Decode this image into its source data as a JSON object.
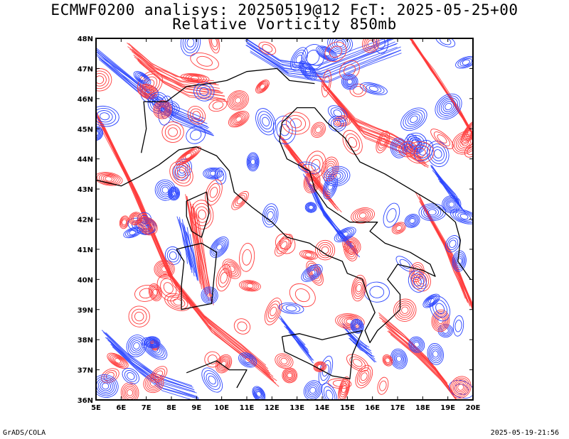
{
  "header": {
    "title_line1": "ECMWF0200 analisys: 20250519@12 FcT: 2025-05-25+00",
    "title_line2": "Relative Vorticity 850mb"
  },
  "map": {
    "lon_range": [
      5,
      20
    ],
    "lat_range": [
      36,
      48
    ],
    "lon_ticks": [
      "5E",
      "6E",
      "7E",
      "8E",
      "9E",
      "10E",
      "11E",
      "12E",
      "13E",
      "14E",
      "15E",
      "16E",
      "17E",
      "18E",
      "19E",
      "20E"
    ],
    "lat_ticks": [
      "36N",
      "37N",
      "38N",
      "39N",
      "40N",
      "41N",
      "42N",
      "43N",
      "44N",
      "45N",
      "46N",
      "47N",
      "48N"
    ],
    "colors": {
      "positive": "#ff3b3b",
      "negative": "#2a44ff",
      "coast": "#000000",
      "frame": "#000000"
    }
  },
  "footer": {
    "credit": "GrADS/COLA",
    "timestamp": "2025-05-19-21:56"
  }
}
